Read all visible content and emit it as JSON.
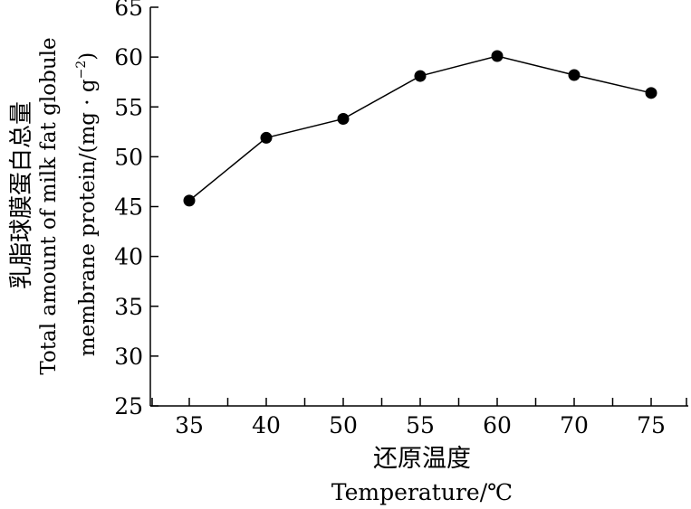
{
  "chart_data": {
    "type": "line",
    "title": "",
    "xlabel_cn": "还原温度",
    "xlabel_en": "Temperature/℃",
    "ylabel_cn": "乳脂球膜蛋白总量",
    "ylabel_en_line1": "Total amount of milk fat globule",
    "ylabel_en_line2_prefix": "membrane protein/(mg · g",
    "ylabel_en_line2_sup": "−2",
    "ylabel_en_line2_suffix": ")",
    "categories": [
      "35",
      "40",
      "50",
      "55",
      "60",
      "70",
      "75"
    ],
    "series": [
      {
        "values": [
          45.6,
          51.9,
          53.8,
          58.1,
          60.1,
          58.2,
          56.4
        ]
      }
    ],
    "ylim": [
      25,
      65
    ],
    "yticks": [
      25,
      30,
      35,
      40,
      45,
      50,
      55,
      60,
      65
    ],
    "grid": false,
    "colors": {
      "line": "#000000",
      "marker": "#000000"
    }
  }
}
